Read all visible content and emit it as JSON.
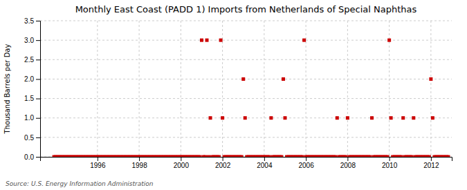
{
  "chart_data": {
    "type": "scatter",
    "title": "Monthly East Coast (PADD 1) Imports from Netherlands of Special Naphthas",
    "ylabel": "Thousand Barrels per Day",
    "annotations": [
      "Source: U.S. Energy Information Administration"
    ],
    "color": "#cc0000",
    "marker": "square",
    "grid": true,
    "xlim": [
      1993.25,
      2013.0
    ],
    "ylim": [
      0.0,
      3.5
    ],
    "xticks": [
      1996,
      1998,
      2000,
      2002,
      2004,
      2006,
      2008,
      2010,
      2012
    ],
    "yticks": [
      {
        "value": 0.0,
        "label": "0.0"
      },
      0.5,
      {
        "value": 1.0,
        "label": "1.0"
      },
      1.5,
      {
        "value": 2.0,
        "label": "2.0"
      },
      2.5,
      {
        "value": 3.0,
        "label": "3.0"
      },
      3.5
    ],
    "x": [
      1993.917,
      1994.0,
      1994.083,
      1994.167,
      1994.25,
      1994.333,
      1994.417,
      1994.5,
      1994.583,
      1994.667,
      1994.75,
      1994.833,
      1994.917,
      1995.0,
      1995.083,
      1995.167,
      1995.25,
      1995.333,
      1995.417,
      1995.5,
      1995.583,
      1995.667,
      1995.75,
      1995.833,
      1995.917,
      1996.0,
      1996.083,
      1996.167,
      1996.25,
      1996.333,
      1996.417,
      1996.5,
      1996.583,
      1996.667,
      1996.75,
      1996.833,
      1996.917,
      1997.0,
      1997.083,
      1997.167,
      1997.25,
      1997.333,
      1997.417,
      1997.5,
      1997.583,
      1997.667,
      1997.75,
      1997.833,
      1997.917,
      1998.0,
      1998.083,
      1998.167,
      1998.25,
      1998.333,
      1998.417,
      1998.5,
      1998.583,
      1998.667,
      1998.75,
      1998.833,
      1998.917,
      1999.0,
      1999.083,
      1999.167,
      1999.25,
      1999.333,
      1999.417,
      1999.5,
      1999.583,
      1999.667,
      1999.75,
      1999.833,
      1999.917,
      2000.0,
      2000.083,
      2000.167,
      2000.25,
      2000.333,
      2000.417,
      2000.5,
      2000.583,
      2000.667,
      2000.75,
      2000.833,
      2000.917,
      2001.0,
      2001.083,
      2001.167,
      2001.25,
      2001.333,
      2001.417,
      2001.5,
      2001.583,
      2001.667,
      2001.75,
      2001.833,
      2001.917,
      2002.0,
      2002.083,
      2002.167,
      2002.25,
      2002.333,
      2002.417,
      2002.5,
      2002.583,
      2002.667,
      2002.75,
      2002.833,
      2002.917,
      2003.0,
      2003.083,
      2003.167,
      2003.25,
      2003.333,
      2003.417,
      2003.5,
      2003.583,
      2003.667,
      2003.75,
      2003.833,
      2003.917,
      2004.0,
      2004.083,
      2004.167,
      2004.25,
      2004.333,
      2004.417,
      2004.5,
      2004.583,
      2004.667,
      2004.75,
      2004.833,
      2004.917,
      2005.0,
      2005.083,
      2005.167,
      2005.25,
      2005.333,
      2005.417,
      2005.5,
      2005.583,
      2005.667,
      2005.75,
      2005.833,
      2005.917,
      2006.0,
      2006.083,
      2006.167,
      2006.25,
      2006.333,
      2006.417,
      2006.5,
      2006.583,
      2006.667,
      2006.75,
      2006.833,
      2006.917,
      2007.0,
      2007.083,
      2007.167,
      2007.25,
      2007.333,
      2007.417,
      2007.5,
      2007.583,
      2007.667,
      2007.75,
      2007.833,
      2007.917,
      2008.0,
      2008.083,
      2008.167,
      2008.25,
      2008.333,
      2008.417,
      2008.5,
      2008.583,
      2008.667,
      2008.75,
      2008.833,
      2008.917,
      2009.0,
      2009.083,
      2009.167,
      2009.25,
      2009.333,
      2009.417,
      2009.5,
      2009.583,
      2009.667,
      2009.75,
      2009.833,
      2009.917,
      2010.0,
      2010.083,
      2010.167,
      2010.25,
      2010.333,
      2010.417,
      2010.5,
      2010.583,
      2010.667,
      2010.75,
      2010.833,
      2010.917,
      2011.0,
      2011.083,
      2011.167,
      2011.25,
      2011.333,
      2011.417,
      2011.5,
      2011.583,
      2011.667,
      2011.75,
      2011.833,
      2011.917,
      2012.0,
      2012.083,
      2012.167,
      2012.25,
      2012.333,
      2012.417,
      2012.5,
      2012.583,
      2012.667,
      2012.75,
      2012.833
    ],
    "values": [
      0.0,
      0.0,
      0.0,
      0.0,
      0.0,
      0.0,
      0.0,
      0.0,
      0.0,
      0.0,
      0.0,
      0.0,
      0.0,
      0.0,
      0.0,
      0.0,
      0.0,
      0.0,
      0.0,
      0.0,
      0.0,
      0.0,
      0.0,
      0.0,
      0.0,
      0.0,
      0.0,
      0.0,
      0.0,
      0.0,
      0.0,
      0.0,
      0.0,
      0.0,
      0.0,
      0.0,
      0.0,
      0.0,
      0.0,
      0.0,
      0.0,
      0.0,
      0.0,
      0.0,
      0.0,
      0.0,
      0.0,
      0.0,
      0.0,
      0.0,
      0.0,
      0.0,
      0.0,
      0.0,
      0.0,
      0.0,
      0.0,
      0.0,
      0.0,
      0.0,
      0.0,
      0.0,
      0.0,
      0.0,
      0.0,
      0.0,
      0.0,
      0.0,
      0.0,
      0.0,
      0.0,
      0.0,
      0.0,
      0.0,
      0.0,
      0.0,
      0.0,
      0.0,
      0.0,
      0.0,
      0.0,
      0.0,
      0.0,
      0.0,
      0.0,
      3.0,
      0.0,
      0.0,
      3.0,
      0.0,
      1.0,
      0.0,
      0.0,
      0.0,
      0.0,
      0.0,
      3.0,
      1.0,
      0.0,
      0.0,
      0.0,
      0.0,
      0.0,
      0.0,
      0.0,
      0.0,
      0.0,
      0.0,
      0.0,
      2.0,
      1.0,
      0.0,
      0.0,
      0.0,
      0.0,
      0.0,
      0.0,
      0.0,
      0.0,
      0.0,
      0.0,
      0.0,
      0.0,
      0.0,
      0.0,
      1.0,
      0.0,
      0.0,
      0.0,
      0.0,
      0.0,
      0.0,
      2.0,
      1.0,
      0.0,
      0.0,
      0.0,
      0.0,
      0.0,
      0.0,
      0.0,
      0.0,
      0.0,
      0.0,
      3.0,
      0.0,
      0.0,
      0.0,
      0.0,
      0.0,
      0.0,
      0.0,
      0.0,
      0.0,
      0.0,
      0.0,
      0.0,
      0.0,
      0.0,
      0.0,
      0.0,
      0.0,
      0.0,
      1.0,
      0.0,
      0.0,
      0.0,
      0.0,
      0.0,
      1.0,
      0.0,
      0.0,
      0.0,
      0.0,
      0.0,
      0.0,
      0.0,
      0.0,
      0.0,
      0.0,
      0.0,
      0.0,
      0.0,
      1.0,
      0.0,
      0.0,
      0.0,
      0.0,
      0.0,
      0.0,
      0.0,
      0.0,
      0.0,
      3.0,
      1.0,
      0.0,
      0.0,
      0.0,
      0.0,
      0.0,
      0.0,
      1.0,
      0.0,
      0.0,
      0.0,
      0.0,
      0.0,
      1.0,
      0.0,
      0.0,
      0.0,
      0.0,
      0.0,
      0.0,
      0.0,
      0.0,
      0.0,
      2.0,
      1.0,
      0.0,
      0.0,
      0.0,
      0.0,
      0.0,
      0.0,
      0.0,
      0.0,
      0.0
    ]
  }
}
